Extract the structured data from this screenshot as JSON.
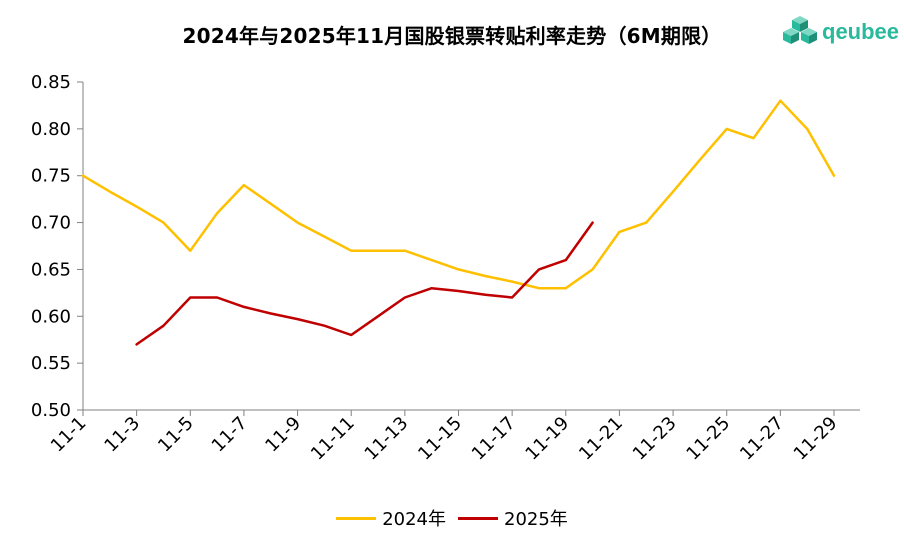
{
  "chart_data": {
    "type": "line",
    "title": "2024年与2025年11月国股银票转贴利率走势（6M期限）",
    "xlabel": "",
    "ylabel": "",
    "ylim": [
      0.5,
      0.85
    ],
    "yticks": [
      "0.50",
      "0.55",
      "0.60",
      "0.65",
      "0.70",
      "0.75",
      "0.80",
      "0.85"
    ],
    "x": [
      "11-1",
      "11-2",
      "11-3",
      "11-4",
      "11-5",
      "11-6",
      "11-7",
      "11-8",
      "11-9",
      "11-10",
      "11-11",
      "11-12",
      "11-13",
      "11-14",
      "11-15",
      "11-16",
      "11-17",
      "11-18",
      "11-19",
      "11-20",
      "11-21",
      "11-22",
      "11-23",
      "11-24",
      "11-25",
      "11-26",
      "11-27",
      "11-28",
      "11-29"
    ],
    "xticks": [
      "11-1",
      "11-3",
      "11-5",
      "11-7",
      "11-9",
      "11-11",
      "11-13",
      "11-15",
      "11-17",
      "11-19",
      "11-21",
      "11-23",
      "11-25",
      "11-27",
      "11-29"
    ],
    "series": [
      {
        "name": "2024年",
        "color": "#FFC000",
        "values": [
          0.75,
          0.733,
          0.717,
          0.7,
          0.67,
          0.71,
          0.74,
          0.72,
          0.7,
          0.685,
          0.67,
          0.67,
          0.67,
          0.66,
          0.65,
          0.643,
          0.637,
          0.63,
          0.63,
          0.65,
          0.69,
          0.7,
          0.733,
          0.767,
          0.8,
          0.79,
          0.83,
          0.8,
          0.75
        ]
      },
      {
        "name": "2025年",
        "color": "#C00000",
        "values": [
          null,
          null,
          0.57,
          0.59,
          0.62,
          0.62,
          0.61,
          0.603,
          0.597,
          0.59,
          0.58,
          0.6,
          0.62,
          0.63,
          0.627,
          0.623,
          0.62,
          0.65,
          0.66,
          0.7,
          null,
          null,
          null,
          null,
          null,
          null,
          null,
          null,
          null
        ]
      }
    ],
    "legend_position": "bottom",
    "grid": false
  },
  "brand": {
    "name": "qeubee",
    "color": "#29b99c",
    "icon": "cube-cluster-icon"
  }
}
